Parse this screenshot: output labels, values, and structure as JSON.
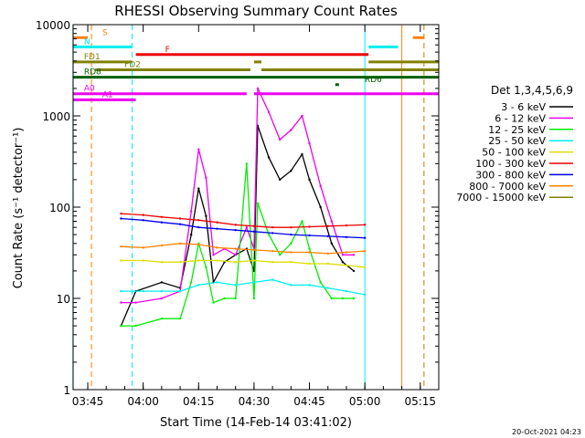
{
  "chart_data": {
    "type": "line",
    "title": "RHESSI Observing Summary Count Rates",
    "xlabel": "Start Time (14-Feb-14 03:41:02)",
    "ylabel": "Count Rate (s⁻¹ detector⁻¹)",
    "y_scale": "log",
    "xlim": [
      "03:41:02",
      "05:20:00"
    ],
    "ylim": [
      1,
      10000
    ],
    "x_ticks": [
      "03:45",
      "04:00",
      "04:15",
      "04:30",
      "04:45",
      "05:00",
      "05:15"
    ],
    "y_ticks": [
      "1",
      "10",
      "100",
      "1000",
      "10000"
    ],
    "legend_title": "Det 1,3,4,5,6,9",
    "legend_position": "right",
    "timestamp": "20-Oct-2021 04:23",
    "series": [
      {
        "name": "3 - 6 keV",
        "color": "#000000",
        "x": [
          "03:54",
          "03:58",
          "04:05",
          "04:10",
          "04:13",
          "04:15",
          "04:17",
          "04:19",
          "04:22",
          "04:25",
          "04:28",
          "04:30",
          "04:31",
          "04:34",
          "04:37",
          "04:40",
          "04:43",
          "04:45",
          "04:48",
          "04:51",
          "04:54",
          "04:57"
        ],
        "values": [
          5,
          12,
          15,
          13,
          50,
          160,
          80,
          15,
          25,
          30,
          35,
          20,
          780,
          350,
          200,
          250,
          380,
          200,
          100,
          40,
          25,
          20
        ]
      },
      {
        "name": "6 - 12 keV",
        "color": "#ee00ee",
        "x": [
          "03:54",
          "03:58",
          "04:05",
          "04:10",
          "04:13",
          "04:15",
          "04:17",
          "04:19",
          "04:22",
          "04:25",
          "04:28",
          "04:30",
          "04:31",
          "04:34",
          "04:37",
          "04:40",
          "04:43",
          "04:45",
          "04:48",
          "04:51",
          "04:54",
          "04:57"
        ],
        "values": [
          9,
          9,
          10,
          12,
          90,
          430,
          210,
          30,
          35,
          30,
          60,
          35,
          2000,
          1100,
          550,
          700,
          1000,
          500,
          170,
          70,
          30,
          30
        ]
      },
      {
        "name": "12 - 25 keV",
        "color": "#00ee00",
        "x": [
          "03:54",
          "03:58",
          "04:05",
          "04:10",
          "04:13",
          "04:15",
          "04:17",
          "04:19",
          "04:22",
          "04:25",
          "04:28",
          "04:30",
          "04:31",
          "04:34",
          "04:37",
          "04:40",
          "04:43",
          "04:45",
          "04:48",
          "04:51",
          "04:54",
          "04:57"
        ],
        "values": [
          5,
          5,
          6,
          6,
          15,
          40,
          22,
          9,
          10,
          10,
          300,
          10,
          110,
          50,
          30,
          40,
          70,
          35,
          15,
          10,
          10,
          10
        ]
      },
      {
        "name": "25 - 50 keV",
        "color": "#00eeee",
        "x": [
          "03:54",
          "04:00",
          "04:05",
          "04:10",
          "04:15",
          "04:20",
          "04:25",
          "04:30",
          "04:35",
          "04:40",
          "04:45",
          "04:50",
          "04:55",
          "05:00"
        ],
        "values": [
          12,
          12,
          12,
          12,
          14,
          15,
          14,
          15,
          16,
          14,
          14,
          13,
          12,
          11
        ]
      },
      {
        "name": "50 - 100 keV",
        "color": "#dddd00",
        "x": [
          "03:54",
          "04:00",
          "04:05",
          "04:10",
          "04:15",
          "04:20",
          "04:25",
          "04:30",
          "04:35",
          "04:40",
          "04:45",
          "04:50",
          "04:55",
          "05:00"
        ],
        "values": [
          26,
          26,
          25,
          25,
          26,
          26,
          25,
          26,
          25,
          25,
          24,
          24,
          23,
          22
        ]
      },
      {
        "name": "100 - 300 keV",
        "color": "#ee0000",
        "x": [
          "03:54",
          "04:00",
          "04:05",
          "04:10",
          "04:15",
          "04:20",
          "04:25",
          "04:30",
          "04:35",
          "04:40",
          "04:45",
          "04:50",
          "04:55",
          "05:00"
        ],
        "values": [
          85,
          82,
          78,
          75,
          72,
          68,
          64,
          62,
          60,
          60,
          61,
          62,
          63,
          64
        ]
      },
      {
        "name": "300 - 800 keV",
        "color": "#0000ee",
        "x": [
          "03:54",
          "04:00",
          "04:05",
          "04:10",
          "04:15",
          "04:20",
          "04:25",
          "04:30",
          "04:35",
          "04:40",
          "04:45",
          "04:50",
          "04:55",
          "05:00"
        ],
        "values": [
          75,
          72,
          68,
          65,
          60,
          58,
          56,
          54,
          52,
          50,
          49,
          48,
          47,
          46
        ]
      },
      {
        "name": "800 - 7000 keV",
        "color": "#ff8000",
        "x": [
          "03:54",
          "04:00",
          "04:05",
          "04:10",
          "04:15",
          "04:20",
          "04:25",
          "04:30",
          "04:35",
          "04:40",
          "04:45",
          "04:50",
          "04:55",
          "05:00"
        ],
        "values": [
          37,
          36,
          38,
          40,
          39,
          36,
          35,
          34,
          33,
          32,
          32,
          31,
          32,
          33
        ]
      },
      {
        "name": "7000 - 15000 keV",
        "color": "#808000",
        "x": [
          "03:54",
          "04:00",
          "04:10",
          "04:20",
          "04:30",
          "04:40",
          "04:50",
          "05:00"
        ],
        "values": [
          0,
          0,
          0,
          0,
          0,
          0,
          0,
          0
        ]
      }
    ],
    "flags": [
      {
        "label": "S",
        "color": "#ff8000",
        "y": 7200,
        "segments": [
          [
            "03:41",
            "03:45"
          ],
          [
            "05:13",
            "05:16"
          ]
        ]
      },
      {
        "label": "N",
        "color": "#00eeee",
        "y": 5700,
        "segments": [
          [
            "03:41",
            "03:57"
          ],
          [
            "05:01",
            "05:09"
          ]
        ]
      },
      {
        "label": "F",
        "color": "#ee0000",
        "y": 4700,
        "segments": [
          [
            "03:58",
            "05:01"
          ]
        ]
      },
      {
        "label": "FD1",
        "color": "#808000",
        "y": 3900,
        "segments": [
          [
            "03:41",
            "03:57"
          ],
          [
            "04:30",
            "04:32"
          ],
          [
            "05:01",
            "05:20"
          ]
        ]
      },
      {
        "label": "FD2",
        "color": "#808000",
        "y": 3200,
        "segments": [
          [
            "03:47",
            "04:29"
          ],
          [
            "04:32",
            "05:20"
          ]
        ]
      },
      {
        "label": "RD8",
        "color": "#006000",
        "y": 2650,
        "segments": [
          [
            "03:41",
            "05:20"
          ]
        ]
      },
      {
        "label": "RD6",
        "color": "#006000",
        "y": 2200,
        "segments": [
          [
            "04:52",
            "04:53"
          ]
        ]
      },
      {
        "label": "A0",
        "color": "#ee00ee",
        "y": 1750,
        "segments": [
          [
            "03:41",
            "04:28"
          ],
          [
            "04:30",
            "05:20"
          ]
        ]
      },
      {
        "label": "A1",
        "color": "#ee00ee",
        "y": 1500,
        "segments": [
          [
            "03:41",
            "03:58"
          ]
        ]
      }
    ],
    "vertical_markers": [
      {
        "x": "03:41",
        "color": "#00eeee",
        "style": "solid"
      },
      {
        "x": "03:46",
        "color": "#ff8000",
        "style": "dashed"
      },
      {
        "x": "03:57",
        "color": "#00eeee",
        "style": "dashed"
      },
      {
        "x": "05:00",
        "color": "#00eeee",
        "style": "solid"
      },
      {
        "x": "05:10",
        "color": "#ff8000",
        "style": "solid"
      },
      {
        "x": "05:16",
        "color": "#00eeee",
        "style": "dashed"
      },
      {
        "x": "05:16",
        "color": "#ff8000",
        "style": "dashed"
      }
    ]
  }
}
